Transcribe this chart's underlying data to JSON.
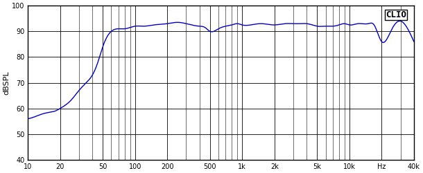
{
  "title": "",
  "ylabel": "dBSPL",
  "xlabel": "Hz",
  "clio_label": "CLIO",
  "xlim": [
    10,
    40000
  ],
  "ylim": [
    40,
    100
  ],
  "yticks": [
    40,
    50,
    60,
    70,
    80,
    90,
    100
  ],
  "xtick_labels": [
    "10",
    "20",
    "50",
    "100",
    "200",
    "500",
    "1k",
    "2k",
    "5k",
    "10k",
    "Hz",
    "40k"
  ],
  "xtick_positions": [
    10,
    20,
    50,
    100,
    200,
    500,
    1000,
    2000,
    5000,
    10000,
    20000,
    40000
  ],
  "line_color": "#0000cc",
  "bg_color": "#ffffff",
  "grid_color": "#000000",
  "freq_points": [
    10,
    12,
    14,
    16,
    18,
    20,
    25,
    30,
    35,
    40,
    45,
    50,
    55,
    60,
    70,
    80,
    90,
    100,
    120,
    150,
    200,
    250,
    300,
    400,
    450,
    500,
    600,
    700,
    800,
    900,
    1000,
    1200,
    1500,
    2000,
    2500,
    3000,
    3500,
    4000,
    4500,
    5000,
    6000,
    7000,
    8000,
    9000,
    10000,
    12000,
    15000,
    17000,
    20000,
    25000,
    30000,
    35000,
    40000
  ],
  "spl_points": [
    56,
    57,
    58,
    58.5,
    59,
    60,
    63,
    67,
    70,
    73,
    78,
    84,
    88,
    90,
    91,
    91,
    91.5,
    92,
    92,
    92.5,
    93,
    93.5,
    93,
    92,
    91.5,
    90,
    91,
    92,
    92.5,
    93,
    92.5,
    92.5,
    93,
    92.5,
    93,
    93,
    93,
    93,
    92.5,
    92,
    92,
    92,
    92.5,
    93,
    92.5,
    93,
    93,
    92.5,
    86,
    91,
    94,
    91,
    86
  ]
}
